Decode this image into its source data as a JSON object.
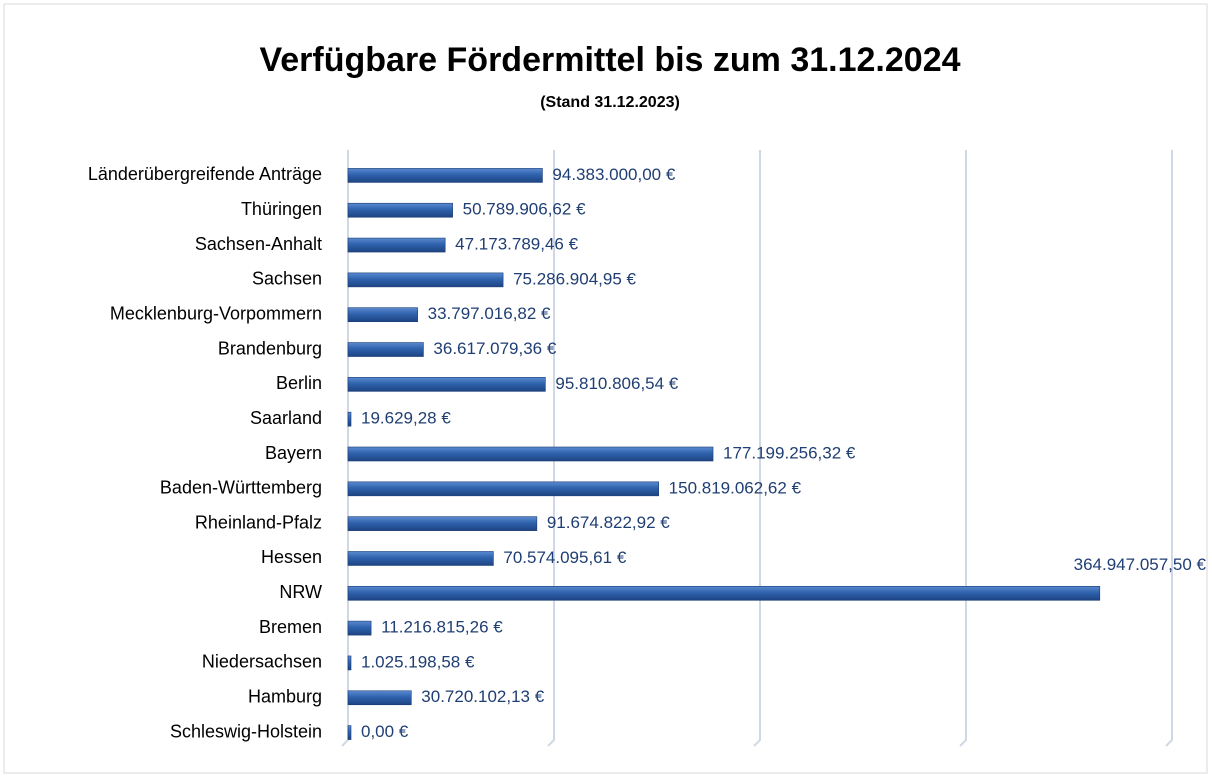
{
  "chart_data": {
    "type": "bar",
    "orientation": "horizontal",
    "title": "Verfügbare Fördermittel bis zum 31.12.2024",
    "subtitle": "(Stand 31.12.2023)",
    "categories": [
      "Länderübergreifende Anträge",
      "Thüringen",
      "Sachsen-Anhalt",
      "Sachsen",
      "Mecklenburg-Vorpommern",
      "Brandenburg",
      "Berlin",
      "Saarland",
      "Bayern",
      "Baden-Württemberg",
      "Rheinland-Pfalz",
      "Hessen",
      "NRW",
      "Bremen",
      "Niedersachsen",
      "Hamburg",
      "Schleswig-Holstein"
    ],
    "values": [
      94383000.0,
      50789906.62,
      47173789.46,
      75286904.95,
      33797016.82,
      36617079.36,
      95810806.54,
      19629.28,
      177199256.32,
      150819062.62,
      91674822.92,
      70574095.61,
      364947057.5,
      11216815.26,
      1025198.58,
      30720102.13,
      0.0
    ],
    "value_labels": [
      "94.383.000,00 €",
      "50.789.906,62 €",
      "47.173.789,46 €",
      "75.286.904,95 €",
      "33.797.016,82 €",
      "36.617.079,36 €",
      "95.810.806,54 €",
      "19.629,28 €",
      "177.199.256,32 €",
      "150.819.062,62 €",
      "91.674.822,92 €",
      "70.574.095,61 €",
      "364.947.057,50 €",
      "11.216.815,26 €",
      "1.025.198,58 €",
      "30.720.102,13 €",
      "0,00 €"
    ],
    "color": "#2f62ad",
    "xlim": [
      0,
      400000000
    ],
    "xticks": [
      0,
      100000000,
      200000000,
      300000000,
      400000000
    ],
    "grid": true
  }
}
